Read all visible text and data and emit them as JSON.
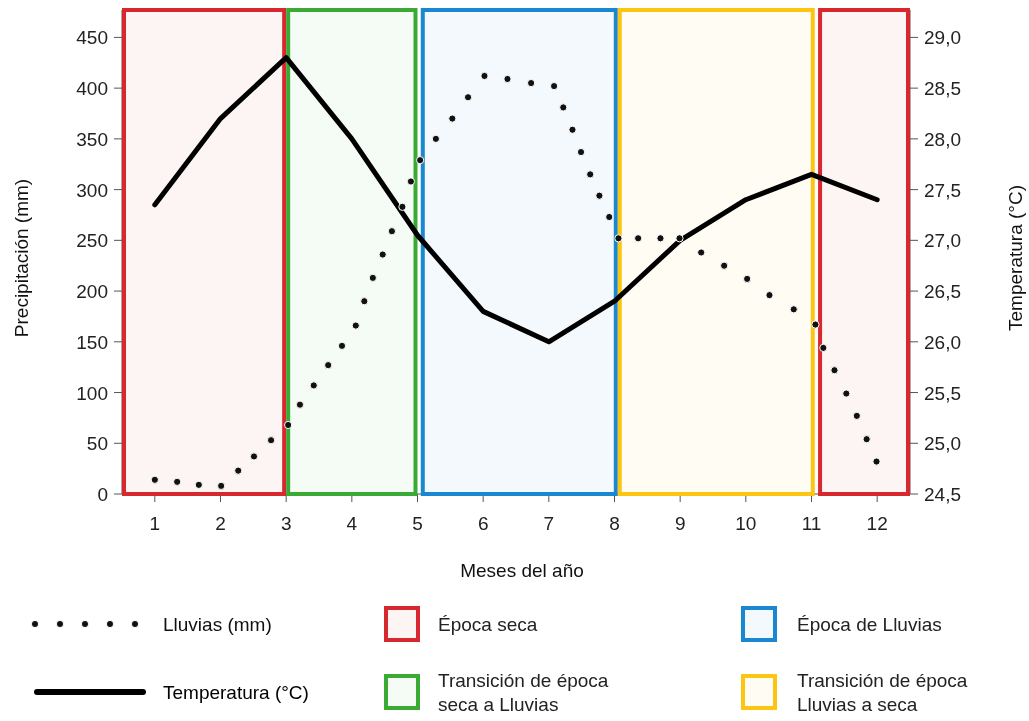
{
  "chart_data": {
    "type": "line",
    "xlabel": "Meses del año",
    "ylabel": "Precipitación (mm)",
    "y2label": "Temperatura (°C)",
    "xlim": [
      0.5,
      12.5
    ],
    "xticks": [
      1,
      2,
      3,
      4,
      5,
      6,
      7,
      8,
      9,
      10,
      11,
      12
    ],
    "ylim": [
      0,
      477
    ],
    "yticks": [
      0,
      50,
      100,
      150,
      200,
      250,
      300,
      350,
      400,
      450
    ],
    "y2lim": [
      24.5,
      29.27
    ],
    "y2ticks": [
      {
        "value": 24.5,
        "label": "24,5"
      },
      {
        "value": 25,
        "label": "25,0"
      },
      {
        "value": 25.5,
        "label": "25,5"
      },
      {
        "value": 26,
        "label": "26,0"
      },
      {
        "value": 26.5,
        "label": "26,5"
      },
      {
        "value": 27,
        "label": "27,0"
      },
      {
        "value": 27.5,
        "label": "27,5"
      },
      {
        "value": 28,
        "label": "28,0"
      },
      {
        "value": 28.5,
        "label": "28,5"
      },
      {
        "value": 29,
        "label": "29,0"
      }
    ],
    "series": [
      {
        "name": "Lluvias (mm)",
        "type": "scatter",
        "marker": "circle",
        "color": "#111111",
        "x": [
          1,
          1.34,
          1.67,
          2.01,
          2.27,
          2.51,
          2.77,
          3.03,
          3.21,
          3.42,
          3.64,
          3.85,
          4.06,
          4.19,
          4.32,
          4.47,
          4.61,
          4.77,
          4.9,
          5.04,
          5.28,
          5.53,
          5.77,
          6.02,
          6.37,
          6.73,
          7.08,
          7.22,
          7.36,
          7.49,
          7.63,
          7.77,
          7.92,
          8.06,
          8.36,
          8.7,
          8.99,
          9.32,
          9.67,
          10.02,
          10.36,
          10.73,
          11.06,
          11.18,
          11.35,
          11.53,
          11.69,
          11.84,
          11.99
        ],
        "values": [
          14,
          12,
          9,
          8,
          23,
          37,
          53,
          68,
          88,
          107,
          127,
          146,
          166,
          190,
          213,
          236,
          259,
          283,
          308,
          329,
          350,
          370,
          391,
          412,
          409,
          405,
          402,
          381,
          359,
          337,
          315,
          294,
          273,
          252,
          252,
          252,
          252,
          238,
          225,
          212,
          196,
          182,
          167,
          144,
          122,
          99,
          77,
          54,
          32
        ]
      },
      {
        "name": "Temperatura (°C)",
        "axis": "y2",
        "line_style": "solid",
        "color": "#000000",
        "x": [
          1,
          2,
          3,
          4,
          5,
          6,
          7,
          8,
          9,
          10,
          11,
          12
        ],
        "values": [
          27.35,
          28.2,
          28.8,
          28.0,
          27.05,
          26.3,
          26.0,
          26.4,
          27.0,
          27.4,
          27.65,
          27.4
        ]
      }
    ],
    "bands": [
      {
        "axis": "x",
        "from": 0.5,
        "to": 3,
        "label": "Época seca",
        "color": "#d7282f"
      },
      {
        "axis": "x",
        "from": 3,
        "to": 5,
        "label": "Transición de época seca a Lluvias",
        "color": "#3aaa35"
      },
      {
        "axis": "x",
        "from": 5.05,
        "to": 8.05,
        "label": "Época de Lluvias",
        "color": "#1a88d0"
      },
      {
        "axis": "x",
        "from": 8.05,
        "to": 11.05,
        "label": "Transición de época Lluvias a seca",
        "color": "#fcc511"
      },
      {
        "axis": "x",
        "from": 11.1,
        "to": 12.5,
        "label": null,
        "color": "#d7282f"
      }
    ],
    "legend": "bottom"
  }
}
